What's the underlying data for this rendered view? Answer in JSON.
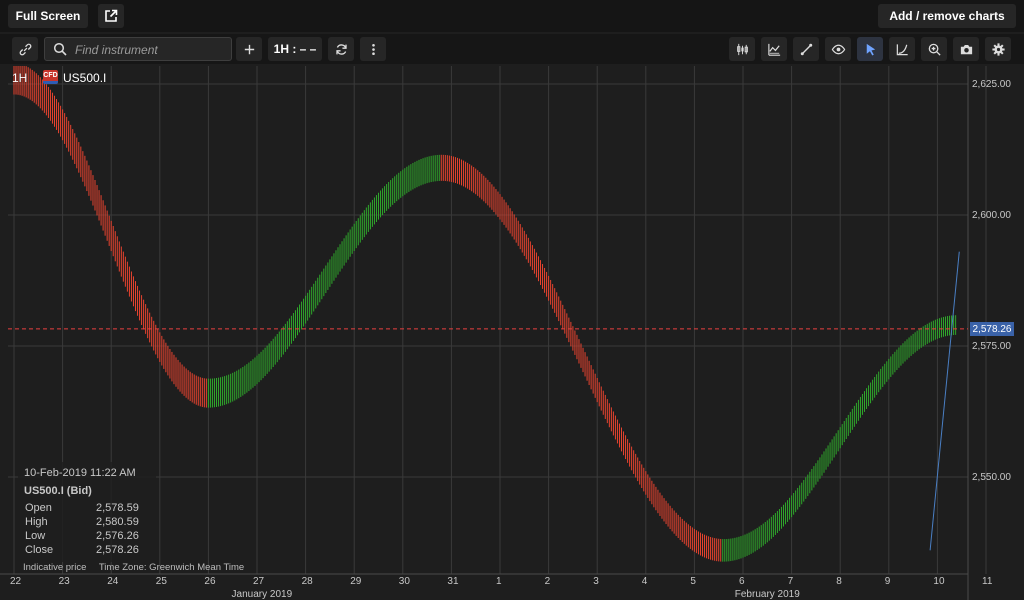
{
  "topbar": {
    "fullscreen_label": "Full Screen",
    "popout_icon": "external-link-icon",
    "add_remove_label": "Add / remove charts"
  },
  "toolbar": {
    "link_icon": "link-icon",
    "search": {
      "placeholder": "Find instrument",
      "value": ""
    },
    "add_icon": "plus-icon",
    "timeframe_label": "1H : – –",
    "refresh_icon": "refresh-icon",
    "more_icon": "vertical-dots-icon",
    "right_tools": [
      {
        "name": "chart-type-icon"
      },
      {
        "name": "indicators-icon"
      },
      {
        "name": "draw-line-icon"
      },
      {
        "name": "eye-icon"
      },
      {
        "name": "cursor-icon",
        "active": true
      },
      {
        "name": "curve-icon"
      },
      {
        "name": "zoom-icon"
      },
      {
        "name": "camera-icon"
      },
      {
        "name": "settings-icon"
      }
    ]
  },
  "chart_header": {
    "timeframe": "1H",
    "badge": "CFD",
    "symbol": "US500.I"
  },
  "price_tag": "2,578.26",
  "ohlc": {
    "date": "10-Feb-2019 11:22 AM",
    "symbol_label": "US500.I (Bid)",
    "rows": [
      {
        "label": "Open",
        "value": "2,578.59"
      },
      {
        "label": "High",
        "value": "2,580.59"
      },
      {
        "label": "Low",
        "value": "2,576.26"
      },
      {
        "label": "Close",
        "value": "2,578.26"
      }
    ]
  },
  "footer": {
    "indicative": "Indicative price",
    "timezone": "Time Zone: Greenwich Mean Time"
  },
  "colors": {
    "background": "#1e1e1e",
    "grid": "#3a3a3a",
    "bull": "#2fa82b",
    "bear": "#e8432f",
    "price_line": "#e84040",
    "trend_line": "#4a7fc4",
    "price_tag": "#3a62a8"
  },
  "chart_data": {
    "type": "candlestick",
    "instrument": "US500.I",
    "timeframe": "1H",
    "y_ticks": [
      {
        "value": 2625,
        "label": "2,625.00"
      },
      {
        "value": 2600,
        "label": "2,600.00"
      },
      {
        "value": 2575,
        "label": "2,575.00"
      },
      {
        "value": 2550,
        "label": "2,550.00"
      }
    ],
    "x_ticks": [
      "22",
      "23",
      "24",
      "25",
      "26",
      "27",
      "28",
      "29",
      "30",
      "31",
      "1",
      "2",
      "3",
      "4",
      "5",
      "6",
      "7",
      "8",
      "9",
      "10",
      "11"
    ],
    "month_labels": [
      "January 2019",
      "February 2019"
    ],
    "ylim": [
      2531,
      2626
    ],
    "current_price": 2578.26,
    "curve_keypoints": [
      {
        "t": 22.0,
        "price": 2626
      },
      {
        "t": 26.0,
        "price": 2566
      },
      {
        "t": 30.8,
        "price": 2609
      },
      {
        "t": 36.6,
        "price": 2536
      },
      {
        "t": 41.4,
        "price": 2579
      }
    ],
    "candle_range_start": 2.4,
    "candle_range_end": 1.5,
    "trend_line": [
      {
        "t": 40.85,
        "price": 2536
      },
      {
        "t": 41.45,
        "price": 2593
      }
    ],
    "grid": true
  }
}
